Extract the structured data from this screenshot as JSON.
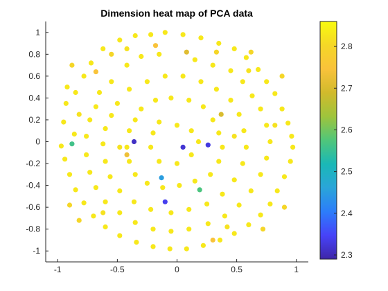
{
  "chart_data": {
    "type": "scatter",
    "title": "Dimension heat map of PCA data",
    "xlabel": "",
    "ylabel": "",
    "xlim": [
      -1.1,
      1.1
    ],
    "ylim": [
      -1.1,
      1.1
    ],
    "xticks": [
      -1,
      -0.5,
      0,
      0.5,
      1
    ],
    "xtick_labels": [
      "-1",
      "-0.5",
      "0",
      "0.5",
      "1"
    ],
    "yticks": [
      -1,
      -0.8,
      -0.6,
      -0.4,
      -0.2,
      0,
      0.2,
      0.4,
      0.6,
      0.8,
      1
    ],
    "ytick_labels": [
      "-1",
      "-0.8",
      "-0.6",
      "-0.4",
      "-0.2",
      "0",
      "0.2",
      "0.4",
      "0.6",
      "0.8",
      "1"
    ],
    "grid": false,
    "colorbar": {
      "clim": [
        2.29,
        2.86
      ],
      "ticks": [
        2.3,
        2.4,
        2.5,
        2.6,
        2.7,
        2.8
      ],
      "tick_labels": [
        "2.3",
        "2.4",
        "2.5",
        "2.6",
        "2.7",
        "2.8"
      ],
      "colormap": [
        "#3e26a8",
        "#4743f8",
        "#2c7dfa",
        "#2aa5d9",
        "#1ab8b6",
        "#50c67a",
        "#9ec43c",
        "#d1ba2c",
        "#f9c23b",
        "#f5d727",
        "#f9fb0e"
      ]
    },
    "points": [
      [
        -0.36,
        0.0,
        2.31
      ],
      [
        0.05,
        -0.05,
        2.32
      ],
      [
        0.26,
        -0.03,
        2.33
      ],
      [
        -0.1,
        -0.55,
        2.34
      ],
      [
        -0.13,
        -0.33,
        2.45
      ],
      [
        -0.88,
        -0.02,
        2.56
      ],
      [
        0.19,
        -0.44,
        2.57
      ],
      [
        0.37,
        0.25,
        2.7
      ],
      [
        -0.42,
        -0.12,
        2.73
      ],
      [
        0.08,
        0.82,
        2.71
      ],
      [
        -0.68,
        0.64,
        2.75
      ],
      [
        -0.18,
        0.88,
        2.75
      ],
      [
        0.3,
        -0.9,
        2.75
      ],
      [
        0.33,
        0.82,
        2.8
      ],
      [
        -0.86,
        0.07,
        2.83
      ],
      [
        -0.95,
        0.18,
        2.83
      ],
      [
        -0.93,
        0.35,
        2.83
      ],
      [
        -0.92,
        0.5,
        2.83
      ],
      [
        -0.85,
        0.45,
        2.83
      ],
      [
        -0.78,
        0.6,
        2.83
      ],
      [
        -0.72,
        0.72,
        2.83
      ],
      [
        -0.62,
        0.85,
        2.83
      ],
      [
        -0.48,
        0.93,
        2.83
      ],
      [
        -0.35,
        0.97,
        2.83
      ],
      [
        -0.22,
        0.98,
        2.83
      ],
      [
        -0.1,
        1.0,
        2.83
      ],
      [
        0.05,
        0.98,
        2.83
      ],
      [
        0.2,
        0.95,
        2.83
      ],
      [
        0.35,
        0.9,
        2.83
      ],
      [
        0.48,
        0.85,
        2.83
      ],
      [
        0.58,
        0.77,
        2.83
      ],
      [
        0.68,
        0.66,
        2.83
      ],
      [
        0.75,
        0.55,
        2.83
      ],
      [
        0.82,
        0.44,
        2.83
      ],
      [
        0.88,
        0.3,
        2.83
      ],
      [
        0.93,
        0.17,
        2.83
      ],
      [
        0.96,
        0.05,
        2.83
      ],
      [
        0.97,
        -0.05,
        2.83
      ],
      [
        0.95,
        -0.18,
        2.83
      ],
      [
        0.9,
        -0.32,
        2.83
      ],
      [
        0.84,
        -0.45,
        2.83
      ],
      [
        0.78,
        -0.57,
        2.83
      ],
      [
        0.7,
        -0.67,
        2.83
      ],
      [
        0.6,
        -0.76,
        2.83
      ],
      [
        0.48,
        -0.84,
        2.83
      ],
      [
        0.36,
        -0.9,
        2.83
      ],
      [
        0.22,
        -0.95,
        2.83
      ],
      [
        0.08,
        -0.98,
        2.83
      ],
      [
        -0.06,
        -0.98,
        2.83
      ],
      [
        -0.2,
        -0.96,
        2.83
      ],
      [
        -0.34,
        -0.92,
        2.83
      ],
      [
        -0.48,
        -0.86,
        2.83
      ],
      [
        -0.6,
        -0.78,
        2.83
      ],
      [
        -0.7,
        -0.68,
        2.83
      ],
      [
        -0.78,
        -0.56,
        2.83
      ],
      [
        -0.85,
        -0.44,
        2.83
      ],
      [
        -0.9,
        -0.3,
        2.83
      ],
      [
        -0.94,
        -0.16,
        2.83
      ],
      [
        -0.97,
        -0.04,
        2.83
      ],
      [
        -0.65,
        0.45,
        2.83
      ],
      [
        -0.55,
        0.55,
        2.83
      ],
      [
        -0.42,
        0.7,
        2.83
      ],
      [
        -0.3,
        0.78,
        2.83
      ],
      [
        -0.15,
        0.8,
        2.83
      ],
      [
        0.15,
        0.75,
        2.83
      ],
      [
        0.3,
        0.7,
        2.83
      ],
      [
        0.45,
        0.65,
        2.83
      ],
      [
        0.55,
        0.55,
        2.83
      ],
      [
        0.63,
        0.42,
        2.83
      ],
      [
        0.7,
        0.3,
        2.83
      ],
      [
        0.75,
        0.15,
        2.83
      ],
      [
        0.78,
        0.0,
        2.83
      ],
      [
        0.75,
        -0.15,
        2.83
      ],
      [
        0.7,
        -0.3,
        2.83
      ],
      [
        0.62,
        -0.45,
        2.83
      ],
      [
        0.52,
        -0.58,
        2.83
      ],
      [
        0.4,
        -0.68,
        2.83
      ],
      [
        0.26,
        -0.75,
        2.83
      ],
      [
        0.1,
        -0.8,
        2.83
      ],
      [
        -0.05,
        -0.82,
        2.83
      ],
      [
        -0.2,
        -0.8,
        2.83
      ],
      [
        -0.35,
        -0.74,
        2.83
      ],
      [
        -0.48,
        -0.65,
        2.83
      ],
      [
        -0.6,
        -0.55,
        2.83
      ],
      [
        -0.68,
        -0.42,
        2.83
      ],
      [
        -0.73,
        -0.28,
        2.83
      ],
      [
        -0.76,
        -0.12,
        2.83
      ],
      [
        -0.76,
        0.05,
        2.83
      ],
      [
        -0.73,
        0.2,
        2.83
      ],
      [
        -0.68,
        0.32,
        2.83
      ],
      [
        -0.5,
        0.35,
        2.83
      ],
      [
        -0.4,
        0.48,
        2.83
      ],
      [
        -0.25,
        0.55,
        2.83
      ],
      [
        -0.1,
        0.6,
        2.83
      ],
      [
        0.05,
        0.6,
        2.83
      ],
      [
        0.2,
        0.55,
        2.83
      ],
      [
        0.33,
        0.48,
        2.83
      ],
      [
        0.45,
        0.38,
        2.83
      ],
      [
        0.52,
        0.25,
        2.83
      ],
      [
        0.56,
        0.1,
        2.83
      ],
      [
        0.58,
        -0.05,
        2.83
      ],
      [
        0.55,
        -0.2,
        2.83
      ],
      [
        0.48,
        -0.35,
        2.83
      ],
      [
        0.38,
        -0.48,
        2.83
      ],
      [
        0.25,
        -0.57,
        2.83
      ],
      [
        0.1,
        -0.62,
        2.83
      ],
      [
        -0.05,
        -0.65,
        2.83
      ],
      [
        -0.22,
        -0.62,
        2.83
      ],
      [
        -0.36,
        -0.55,
        2.83
      ],
      [
        -0.48,
        -0.45,
        2.83
      ],
      [
        -0.56,
        -0.32,
        2.83
      ],
      [
        -0.6,
        -0.18,
        2.83
      ],
      [
        -0.62,
        -0.02,
        2.83
      ],
      [
        -0.6,
        0.12,
        2.83
      ],
      [
        -0.55,
        0.24,
        2.83
      ],
      [
        -0.3,
        0.3,
        2.83
      ],
      [
        -0.18,
        0.38,
        2.83
      ],
      [
        -0.05,
        0.4,
        2.83
      ],
      [
        0.1,
        0.38,
        2.83
      ],
      [
        0.22,
        0.32,
        2.83
      ],
      [
        0.3,
        0.2,
        2.83
      ],
      [
        0.35,
        0.08,
        2.83
      ],
      [
        0.38,
        -0.05,
        2.83
      ],
      [
        0.35,
        -0.18,
        2.83
      ],
      [
        0.28,
        -0.3,
        2.83
      ],
      [
        0.15,
        -0.36,
        2.83
      ],
      [
        0.02,
        -0.4,
        2.83
      ],
      [
        -0.12,
        -0.42,
        2.83
      ],
      [
        -0.25,
        -0.38,
        2.83
      ],
      [
        -0.35,
        -0.3,
        2.83
      ],
      [
        -0.4,
        -0.18,
        2.83
      ],
      [
        -0.42,
        -0.05,
        2.83
      ],
      [
        -0.4,
        0.1,
        2.83
      ],
      [
        -0.35,
        0.2,
        2.83
      ],
      [
        -0.15,
        0.18,
        2.83
      ],
      [
        0.0,
        0.15,
        2.83
      ],
      [
        0.12,
        0.1,
        2.83
      ],
      [
        0.18,
        0.0,
        2.83
      ],
      [
        0.12,
        -0.12,
        2.83
      ],
      [
        0.0,
        -0.2,
        2.83
      ],
      [
        -0.15,
        -0.18,
        2.83
      ],
      [
        -0.22,
        -0.05,
        2.83
      ],
      [
        -0.2,
        0.08,
        2.83
      ],
      [
        -0.55,
        0.8,
        2.8
      ],
      [
        0.62,
        0.82,
        2.8
      ],
      [
        0.88,
        0.6,
        2.8
      ],
      [
        -0.88,
        0.7,
        2.8
      ],
      [
        -0.82,
        -0.72,
        2.8
      ],
      [
        0.72,
        -0.8,
        2.8
      ],
      [
        0.9,
        -0.6,
        2.8
      ],
      [
        -0.9,
        -0.58,
        2.8
      ],
      [
        0.82,
        0.15,
        2.82
      ],
      [
        -0.82,
        0.25,
        2.82
      ],
      [
        0.48,
        0.05,
        2.82
      ],
      [
        -0.48,
        -0.05,
        2.82
      ],
      [
        0.6,
        0.65,
        2.82
      ],
      [
        -0.62,
        -0.65,
        2.82
      ],
      [
        0.42,
        -0.78,
        2.82
      ],
      [
        -0.42,
        0.85,
        2.82
      ]
    ]
  }
}
